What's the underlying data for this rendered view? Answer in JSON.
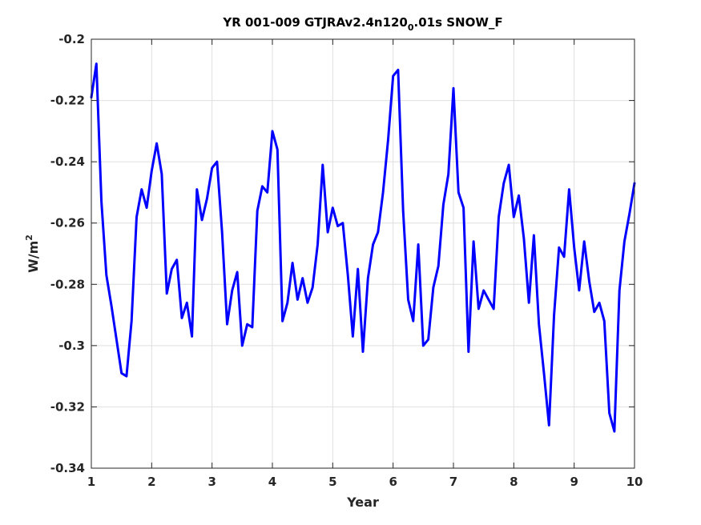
{
  "chart_data": {
    "type": "line",
    "title": {
      "prefix": "YR 001-009 GTJRAv2.4n120",
      "subscript": "0",
      "suffix": ".01s SNOW_F"
    },
    "xlabel": "Year",
    "ylabel": {
      "base": "W/m",
      "superscript": "2"
    },
    "xlim": [
      1,
      10
    ],
    "ylim": [
      -0.34,
      -0.2
    ],
    "xticks": [
      1,
      2,
      3,
      4,
      5,
      6,
      7,
      8,
      9,
      10
    ],
    "xtick_labels": [
      "1",
      "2",
      "3",
      "4",
      "5",
      "6",
      "7",
      "8",
      "9",
      "10"
    ],
    "yticks": [
      -0.34,
      -0.32,
      -0.3,
      -0.28,
      -0.26,
      -0.24,
      -0.22,
      -0.2
    ],
    "ytick_labels": [
      "-0.34",
      "-0.32",
      "-0.3",
      "-0.28",
      "-0.26",
      "-0.24",
      "-0.22",
      "-0.2"
    ],
    "grid": true,
    "series": [
      {
        "color": "#0000ff",
        "x": [
          1.0,
          1.083,
          1.167,
          1.25,
          1.333,
          1.417,
          1.5,
          1.583,
          1.667,
          1.75,
          1.833,
          1.917,
          2.0,
          2.083,
          2.167,
          2.25,
          2.333,
          2.417,
          2.5,
          2.583,
          2.667,
          2.75,
          2.833,
          2.917,
          3.0,
          3.083,
          3.167,
          3.25,
          3.333,
          3.417,
          3.5,
          3.583,
          3.667,
          3.75,
          3.833,
          3.917,
          4.0,
          4.083,
          4.167,
          4.25,
          4.333,
          4.417,
          4.5,
          4.583,
          4.667,
          4.75,
          4.833,
          4.917,
          5.0,
          5.083,
          5.167,
          5.25,
          5.333,
          5.417,
          5.5,
          5.583,
          5.667,
          5.75,
          5.833,
          5.917,
          6.0,
          6.083,
          6.167,
          6.25,
          6.333,
          6.417,
          6.5,
          6.583,
          6.667,
          6.75,
          6.833,
          6.917,
          7.0,
          7.083,
          7.167,
          7.25,
          7.333,
          7.417,
          7.5,
          7.583,
          7.667,
          7.75,
          7.833,
          7.917,
          8.0,
          8.083,
          8.167,
          8.25,
          8.333,
          8.417,
          8.5,
          8.583,
          8.667,
          8.75,
          8.833,
          8.917,
          9.0,
          9.083,
          9.167,
          9.25,
          9.333,
          9.417,
          9.5,
          9.583,
          9.667,
          9.75,
          9.833,
          9.917,
          10.0
        ],
        "y": [
          -0.219,
          -0.208,
          -0.253,
          -0.277,
          -0.287,
          -0.298,
          -0.309,
          -0.31,
          -0.292,
          -0.258,
          -0.249,
          -0.255,
          -0.243,
          -0.234,
          -0.244,
          -0.283,
          -0.275,
          -0.272,
          -0.291,
          -0.286,
          -0.297,
          -0.249,
          -0.259,
          -0.252,
          -0.242,
          -0.24,
          -0.263,
          -0.293,
          -0.282,
          -0.276,
          -0.3,
          -0.293,
          -0.294,
          -0.256,
          -0.248,
          -0.25,
          -0.23,
          -0.236,
          -0.292,
          -0.286,
          -0.273,
          -0.285,
          -0.278,
          -0.286,
          -0.281,
          -0.267,
          -0.241,
          -0.263,
          -0.255,
          -0.261,
          -0.26,
          -0.277,
          -0.297,
          -0.275,
          -0.302,
          -0.278,
          -0.267,
          -0.263,
          -0.25,
          -0.233,
          -0.212,
          -0.21,
          -0.256,
          -0.285,
          -0.292,
          -0.267,
          -0.3,
          -0.298,
          -0.281,
          -0.274,
          -0.254,
          -0.244,
          -0.216,
          -0.25,
          -0.255,
          -0.302,
          -0.266,
          -0.288,
          -0.282,
          -0.285,
          -0.288,
          -0.258,
          -0.247,
          -0.241,
          -0.258,
          -0.251,
          -0.265,
          -0.286,
          -0.264,
          -0.293,
          -0.309,
          -0.326,
          -0.29,
          -0.268,
          -0.271,
          -0.249,
          -0.268,
          -0.282,
          -0.266,
          -0.279,
          -0.289,
          -0.286,
          -0.292,
          -0.322,
          -0.328,
          -0.282,
          -0.266,
          -0.257,
          -0.247
        ]
      }
    ]
  }
}
